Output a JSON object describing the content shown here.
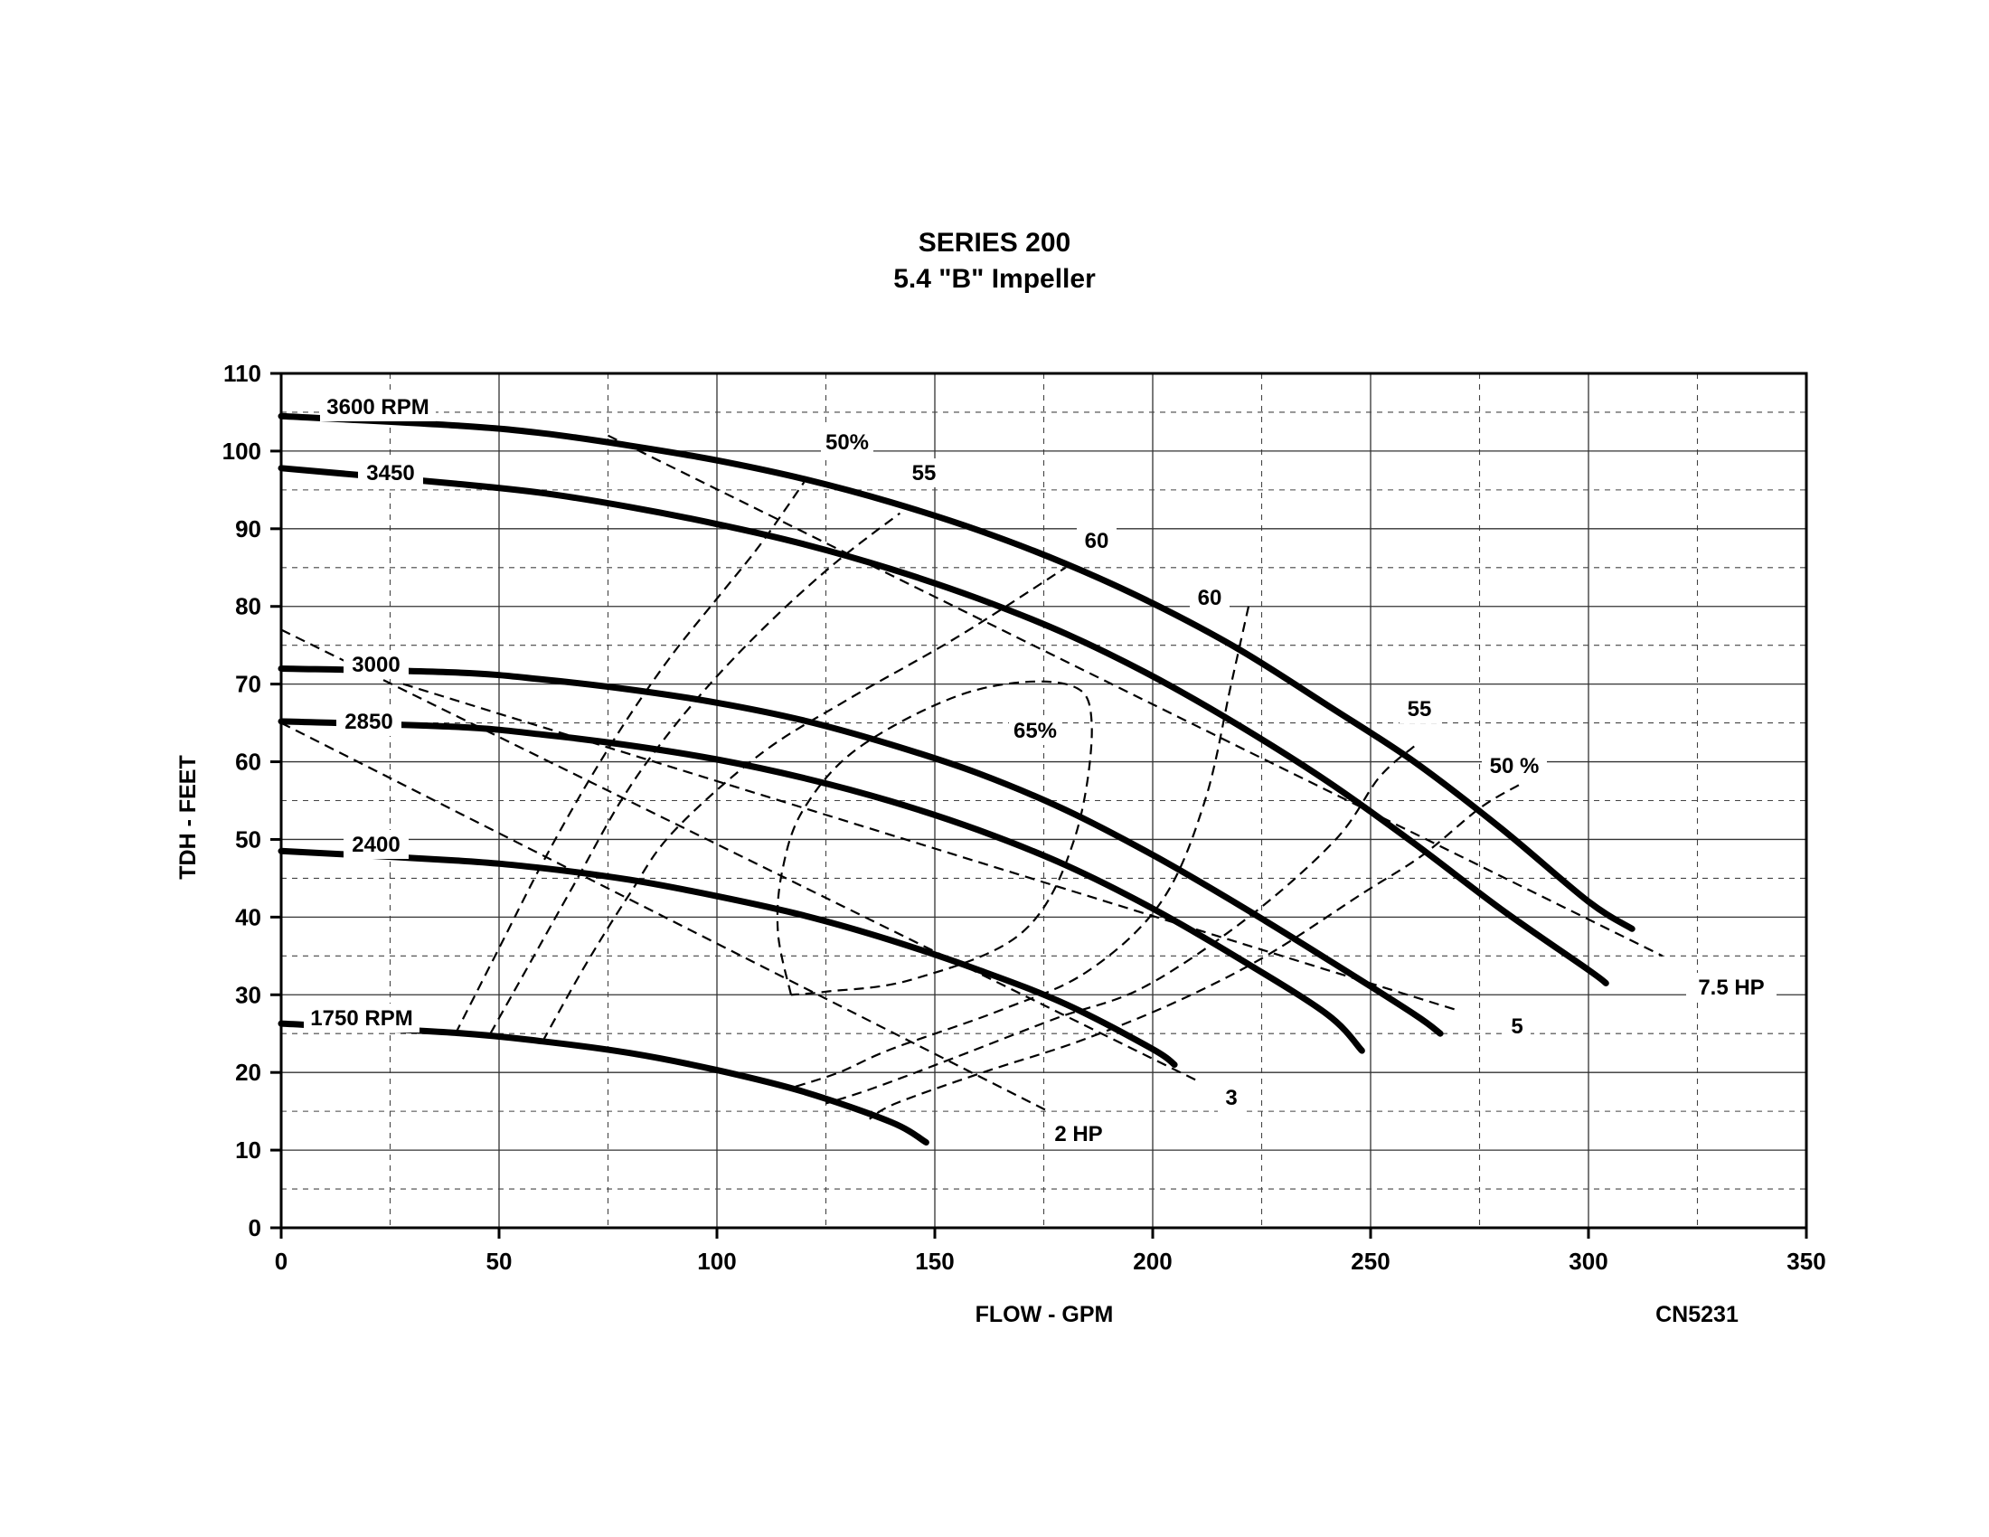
{
  "chart_data": {
    "type": "line",
    "title": "SERIES 200",
    "subtitle": "5.4 \"B\" Impeller",
    "xlabel": "FLOW - GPM",
    "ylabel": "TDH - FEET",
    "code": "CN5231",
    "xlim": [
      0,
      350
    ],
    "ylim": [
      0,
      110
    ],
    "grid": true,
    "x_ticks": [
      "0",
      "50",
      "100",
      "150",
      "200",
      "250",
      "300",
      "350"
    ],
    "y_ticks": [
      "0",
      "10",
      "20",
      "30",
      "40",
      "50",
      "60",
      "70",
      "80",
      "90",
      "100",
      "110"
    ],
    "series": [
      {
        "name": "3600 RPM",
        "kind": "speed",
        "x": [
          0,
          40,
          60,
          80,
          100,
          120,
          140,
          160,
          180,
          200,
          220,
          240,
          260,
          280,
          300,
          310
        ],
        "y": [
          104.5,
          103.3,
          102.3,
          100.7,
          98.8,
          96.4,
          93.4,
          89.8,
          85.5,
          80.4,
          74.4,
          67.3,
          60.0,
          51.4,
          42.0,
          38.5
        ]
      },
      {
        "name": "3450",
        "kind": "speed",
        "x": [
          0,
          40,
          60,
          80,
          100,
          120,
          140,
          160,
          180,
          200,
          220,
          240,
          260,
          280,
          300,
          304
        ],
        "y": [
          97.8,
          95.8,
          94.6,
          92.8,
          90.6,
          88.0,
          84.8,
          81.0,
          76.5,
          71.0,
          64.6,
          57.5,
          49.5,
          41.0,
          33.2,
          31.5
        ]
      },
      {
        "name": "3000",
        "kind": "speed",
        "x": [
          0,
          40,
          60,
          80,
          100,
          120,
          140,
          160,
          180,
          200,
          220,
          240,
          260,
          266
        ],
        "y": [
          72.0,
          71.5,
          70.6,
          69.3,
          67.6,
          65.3,
          62.2,
          58.5,
          53.8,
          48.0,
          41.5,
          34.6,
          27.5,
          25.0
        ]
      },
      {
        "name": "2850",
        "kind": "speed",
        "x": [
          0,
          40,
          60,
          80,
          100,
          120,
          140,
          160,
          180,
          200,
          220,
          240,
          248
        ],
        "y": [
          65.2,
          64.5,
          63.5,
          62.1,
          60.3,
          57.9,
          54.9,
          51.2,
          46.7,
          41.1,
          34.6,
          27.5,
          22.8
        ]
      },
      {
        "name": "2400",
        "kind": "speed",
        "x": [
          0,
          40,
          60,
          80,
          100,
          120,
          140,
          160,
          180,
          200,
          205
        ],
        "y": [
          48.5,
          47.3,
          46.3,
          44.8,
          42.7,
          40.2,
          37.0,
          33.2,
          28.8,
          23.0,
          21.0
        ]
      },
      {
        "name": "1750 RPM",
        "kind": "speed",
        "x": [
          0,
          40,
          60,
          80,
          100,
          120,
          140,
          148
        ],
        "y": [
          26.3,
          25.1,
          24.0,
          22.5,
          20.3,
          17.5,
          13.6,
          11.0
        ]
      },
      {
        "name": "50%",
        "kind": "efficiency",
        "x": [
          40,
          50,
          60,
          70,
          80,
          90,
          100,
          110,
          120
        ],
        "y": [
          25,
          36,
          47,
          57,
          66,
          74,
          81,
          88,
          96
        ]
      },
      {
        "name": "55",
        "kind": "efficiency",
        "x": [
          48,
          58,
          68,
          78,
          88,
          100,
          114,
          128,
          142
        ],
        "y": [
          25,
          35,
          45,
          55,
          63,
          71,
          79,
          86,
          92
        ]
      },
      {
        "name": "60",
        "kind": "efficiency",
        "x": [
          60,
          70,
          80,
          90,
          110,
          130,
          155,
          180
        ],
        "y": [
          24,
          34,
          43,
          51,
          61,
          68,
          76,
          85
        ]
      },
      {
        "name": "65%",
        "kind": "efficiency",
        "x": [
          117,
          114,
          115,
          120,
          133,
          158,
          180,
          186,
          182,
          170,
          145,
          125,
          117
        ],
        "y": [
          30,
          38,
          46,
          54,
          62,
          69,
          70,
          65,
          50,
          38,
          32,
          30.4,
          30
        ]
      },
      {
        "name": "60",
        "kind": "efficiency",
        "x": [
          222,
          218,
          212,
          202,
          185,
          165,
          140,
          128,
          117
        ],
        "y": [
          80,
          70,
          55,
          42,
          33,
          28,
          23,
          20,
          18
        ]
      },
      {
        "name": "55",
        "kind": "efficiency",
        "x": [
          260,
          252,
          242,
          222,
          198,
          178,
          155,
          136,
          125
        ],
        "y": [
          62,
          58,
          50,
          40,
          31,
          27,
          22,
          18,
          16
        ]
      },
      {
        "name": "50 %",
        "kind": "efficiency",
        "x": [
          284,
          275,
          262,
          248,
          226,
          205,
          183,
          161,
          141,
          135
        ],
        "y": [
          57,
          54,
          48,
          43,
          35,
          29,
          24,
          20,
          16,
          14
        ]
      },
      {
        "name": "7.5 HP",
        "kind": "power",
        "x": [
          75,
          317
        ],
        "y": [
          102,
          35
        ]
      },
      {
        "name": "5",
        "kind": "power",
        "x": [
          28,
          270
        ],
        "y": [
          70,
          28
        ]
      },
      {
        "name": "3",
        "kind": "power",
        "x": [
          0,
          210
        ],
        "y": [
          77,
          19
        ]
      },
      {
        "name": "2 HP",
        "kind": "power",
        "x": [
          0,
          176
        ],
        "y": [
          65,
          15
        ]
      }
    ]
  }
}
